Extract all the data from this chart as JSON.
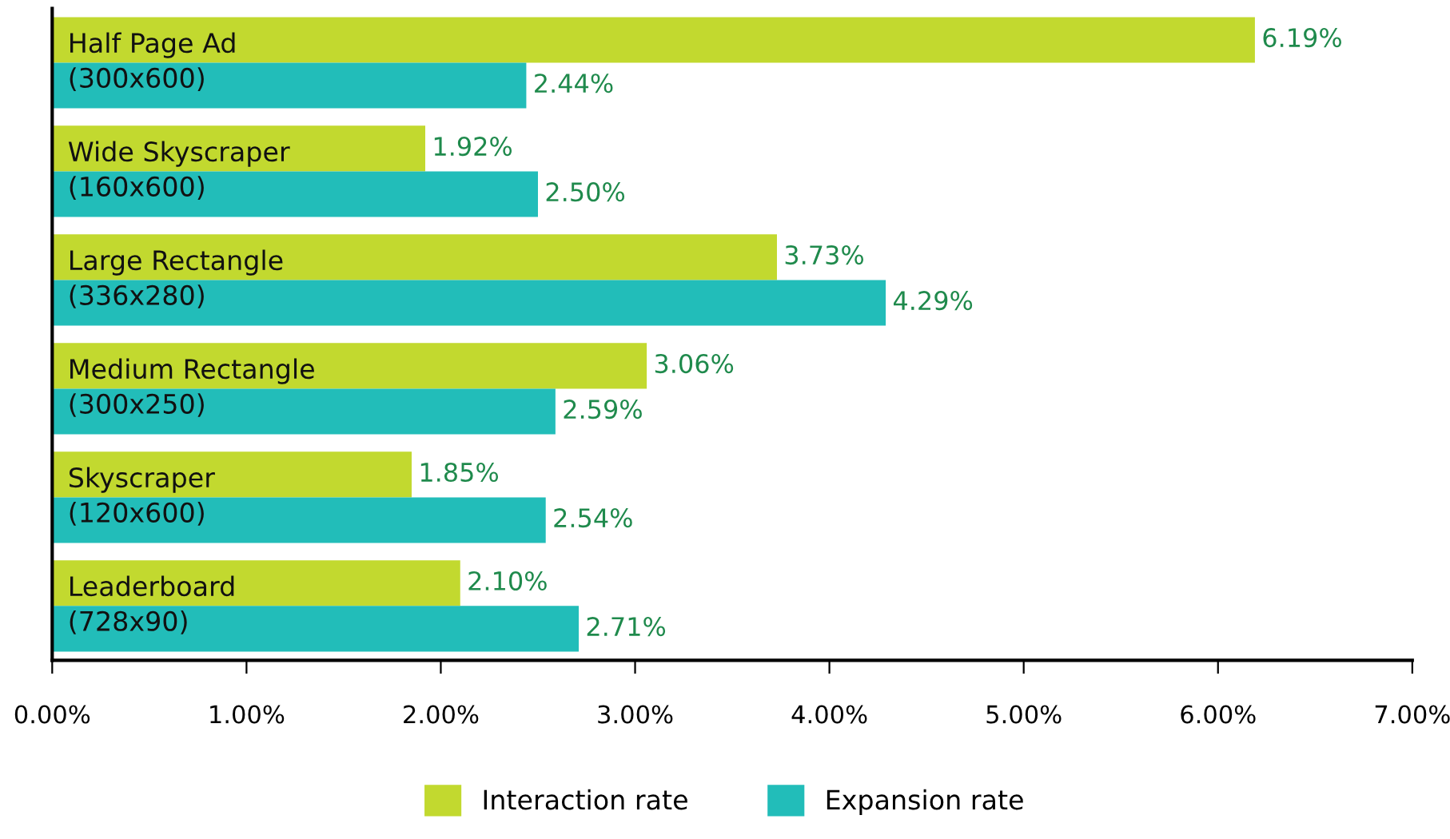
{
  "chart_data": {
    "type": "bar",
    "orientation": "horizontal",
    "categories": [
      "Half Page Ad\n(300x600)",
      "Wide Skyscraper\n(160x600)",
      "Large Rectangle\n(336x280)",
      "Medium Rectangle\n(300x250)",
      "Skyscraper\n(120x600)",
      "Leaderboard\n(728x90)"
    ],
    "series": [
      {
        "name": "Interaction rate",
        "color": "#c2d92f",
        "values": [
          6.19,
          1.92,
          3.73,
          3.06,
          1.85,
          2.1
        ],
        "value_labels": [
          "6.19%",
          "1.92%",
          "3.73%",
          "3.06%",
          "1.85%",
          "2.10%"
        ]
      },
      {
        "name": "Expansion rate",
        "color": "#22bdb9",
        "values": [
          2.44,
          2.5,
          4.29,
          2.59,
          2.54,
          2.71
        ],
        "value_labels": [
          "2.44%",
          "2.50%",
          "4.29%",
          "2.59%",
          "2.54%",
          "2.71%"
        ]
      }
    ],
    "xlim": [
      0,
      7
    ],
    "xticks": [
      {
        "value": 0,
        "label": "0.00%"
      },
      {
        "value": 1,
        "label": "1.00%"
      },
      {
        "value": 2,
        "label": "2.00%"
      },
      {
        "value": 3,
        "label": "3.00%"
      },
      {
        "value": 4,
        "label": "4.00%"
      },
      {
        "value": 5,
        "label": "5.00%"
      },
      {
        "value": 6,
        "label": "6.00%"
      },
      {
        "value": 7,
        "label": "7.00%"
      }
    ],
    "grid": false,
    "legend": "bottom"
  }
}
